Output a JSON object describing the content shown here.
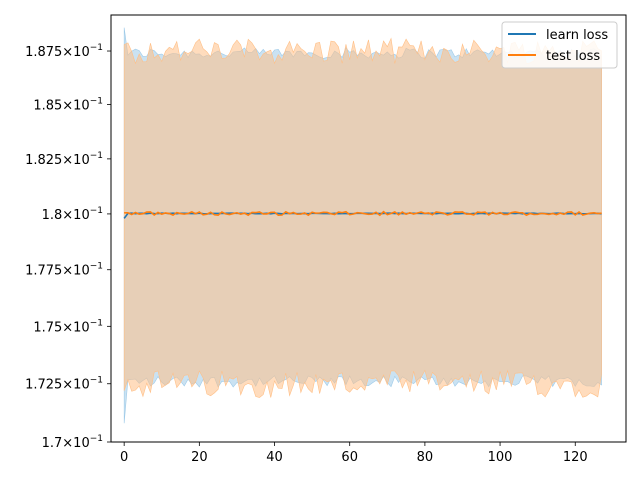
{
  "chart_data": {
    "type": "line",
    "title": "",
    "xlabel": "",
    "ylabel": "",
    "xlim": [
      -3.5,
      133.5
    ],
    "ylim": [
      0.17,
      0.1892
    ],
    "yscale": "log",
    "grid": false,
    "legend_position": "top-right",
    "x_ticks": [
      0,
      20,
      40,
      60,
      80,
      100,
      120
    ],
    "x_tick_labels": [
      "0",
      "20",
      "40",
      "60",
      "80",
      "100",
      "120"
    ],
    "y_ticks": [
      {
        "value": 0.17,
        "mantissa": "1.7"
      },
      {
        "value": 0.1725,
        "mantissa": "1.725"
      },
      {
        "value": 0.175,
        "mantissa": "1.75"
      },
      {
        "value": 0.1775,
        "mantissa": "1.775"
      },
      {
        "value": 0.18,
        "mantissa": "1.8"
      },
      {
        "value": 0.1825,
        "mantissa": "1.825"
      },
      {
        "value": 0.185,
        "mantissa": "1.85"
      },
      {
        "value": 0.1875,
        "mantissa": "1.875"
      }
    ],
    "y_tick_times": "×",
    "y_tick_base": "10",
    "y_tick_exponent": "−1",
    "x_range": [
      0,
      127
    ],
    "series": [
      {
        "name": "learn loss",
        "color": "#1f77b4",
        "band_color": "#9ecae8",
        "mean_start": 0.1798,
        "mean": 0.18002,
        "mean_jitter": 1.5e-05,
        "band_upper": 0.1874,
        "band_lower": 0.1726,
        "band_jitter": 0.00025,
        "band_upper_start": 0.1886,
        "band_lower_start": 0.1708
      },
      {
        "name": "test loss",
        "color": "#ff7f0e",
        "band_color": "#ffbf86",
        "mean_start": 0.18005,
        "mean": 0.18002,
        "mean_jitter": 8e-05,
        "band_upper": 0.1875,
        "band_lower": 0.1725,
        "band_jitter": 0.0006,
        "band_upper_start": 0.1878,
        "band_lower_start": 0.1722
      }
    ]
  }
}
